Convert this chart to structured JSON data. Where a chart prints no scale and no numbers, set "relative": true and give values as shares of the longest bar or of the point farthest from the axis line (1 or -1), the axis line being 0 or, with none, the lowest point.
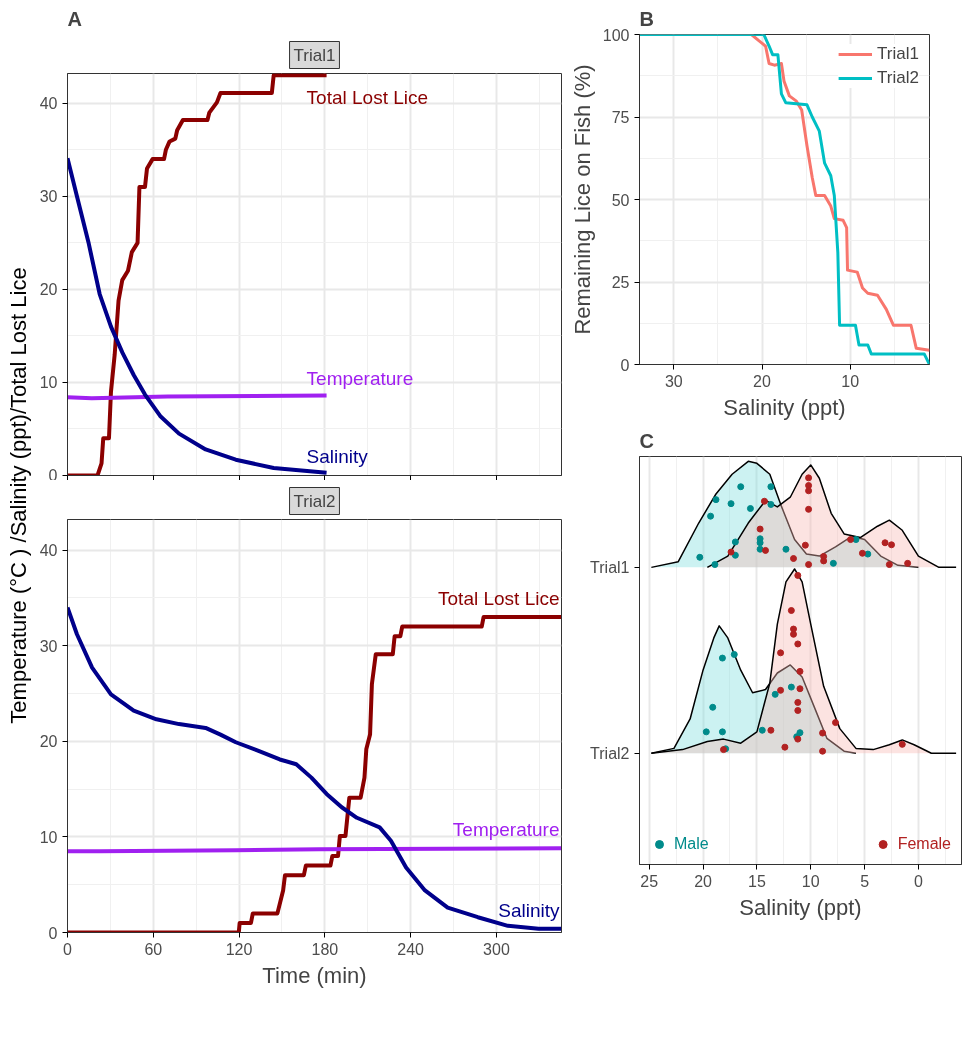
{
  "chart_data": [
    {
      "type": "line",
      "title": "Trial1",
      "ylabel": "Temperature (°C ) /Salinity (ppt)/Total Lost Lice",
      "xlim": [
        0,
        345.5
      ],
      "ylim": [
        0,
        43.2
      ],
      "xticks": [
        0,
        60,
        120,
        180,
        240,
        300
      ],
      "yticks": [
        0,
        10,
        20,
        30,
        40
      ],
      "tick_labels": "y",
      "grid": true,
      "annotations": [
        "A"
      ],
      "series": [
        {
          "name": "Total Lost Lice",
          "color": "#8b0000",
          "x": [
            0,
            21,
            23.8,
            25,
            29,
            30.4,
            33,
            35.7,
            38.3,
            42.3,
            45,
            49,
            50.3,
            54.2,
            55.6,
            59.5,
            67.5,
            68.8,
            71.4,
            75.4,
            76.7,
            80.7,
            97.9,
            99.2,
            104.5,
            107,
            142.9,
            144.2,
            181.2
          ],
          "values": [
            0,
            0,
            1.3,
            4,
            4,
            9,
            13,
            18.8,
            21,
            22,
            24,
            25,
            31,
            31,
            33,
            34,
            34,
            35,
            35.9,
            36.2,
            37.1,
            38.2,
            38.2,
            39,
            40.1,
            41.1,
            41.1,
            43,
            43
          ]
        },
        {
          "name": "Temperature",
          "color": "#a020f0",
          "x": [
            0,
            17,
            70,
            181.2
          ],
          "values": [
            8.4,
            8.3,
            8.5,
            8.6
          ]
        },
        {
          "name": "Salinity",
          "color": "#00008b",
          "x": [
            0,
            6.6,
            14.6,
            22.5,
            30.4,
            38.4,
            46.3,
            54.2,
            64.8,
            78,
            96.6,
            117.7,
            144.2,
            181.2
          ],
          "values": [
            34.1,
            30,
            25.1,
            19.5,
            16,
            13.2,
            10.8,
            8.7,
            6.4,
            4.5,
            2.8,
            1.7,
            0.8,
            0.3
          ]
        }
      ]
    },
    {
      "type": "line",
      "title": "Trial2",
      "xlabel": "Time (min)",
      "xlim": [
        0,
        345.5
      ],
      "ylim": [
        0,
        43.2
      ],
      "xticks": [
        0,
        60,
        120,
        180,
        240,
        300
      ],
      "yticks": [
        0,
        10,
        20,
        30,
        40
      ],
      "grid": true,
      "series": [
        {
          "name": "Total Lost Lice",
          "color": "#8b0000",
          "x": [
            0,
            119.8,
            120.4,
            128.3,
            129.6,
            146.8,
            150.8,
            152.1,
            165.3,
            166.7,
            183.9,
            185.2,
            189.2,
            190.5,
            194.4,
            197.1,
            205,
            207.7,
            209,
            211.6,
            212.9,
            215.6,
            227.5,
            228.8,
            232.8,
            234.1,
            289.7,
            291,
            345.2
          ],
          "values": [
            0,
            0,
            1,
            1,
            2,
            2,
            4.4,
            6,
            6,
            7,
            7,
            8,
            8,
            10.1,
            10.1,
            14.1,
            14.1,
            16.2,
            19.2,
            20.7,
            26,
            29.1,
            29.1,
            31,
            31,
            32,
            32,
            33,
            33
          ]
        },
        {
          "name": "Temperature",
          "color": "#a020f0",
          "x": [
            0,
            22.5,
            117.7,
            176,
            345.2
          ],
          "values": [
            8.5,
            8.5,
            8.6,
            8.7,
            8.8
          ]
        },
        {
          "name": "Salinity",
          "color": "#00008b",
          "x": [
            0,
            6.6,
            17.2,
            30.4,
            46.3,
            62.2,
            78,
            96.6,
            107,
            117.7,
            133.6,
            148.5,
            160,
            170.6,
            181.2,
            191.8,
            202.4,
            218.3,
            226.2,
            236.8,
            250,
            265.9,
            287,
            308,
            329.4,
            345.2
          ],
          "values": [
            34,
            31.2,
            27.7,
            24.9,
            23.2,
            22.3,
            21.8,
            21.4,
            20.7,
            19.9,
            19,
            18.1,
            17.6,
            16.2,
            14.5,
            13.1,
            12,
            11,
            9.6,
            6.8,
            4.4,
            2.6,
            1.6,
            0.7,
            0.4,
            0.4
          ]
        }
      ]
    },
    {
      "type": "line",
      "xlabel": "Salinity (ppt)",
      "ylabel": "Remaining Lice on Fish (%)",
      "xlim": [
        33.9,
        1
      ],
      "ylim": [
        0,
        100
      ],
      "xticks": [
        30,
        20,
        10
      ],
      "yticks": [
        0,
        25,
        50,
        75,
        100
      ],
      "grid": true,
      "legend": "top right",
      "annotations": [
        "B"
      ],
      "series": [
        {
          "name": "Trial1",
          "color": "#f8766d",
          "x": [
            33.9,
            21.2,
            20.4,
            19.6,
            19.2,
            18.6,
            17.8,
            17.5,
            16.9,
            16.1,
            15.5,
            14.9,
            14.3,
            13.9,
            12.9,
            12.2,
            11.8,
            10.8,
            10.4,
            10.3,
            9.2,
            8.6,
            8,
            6.9,
            5.9,
            5.1,
            3.1,
            2.5,
            1
          ],
          "values": [
            100,
            100,
            98.2,
            96.5,
            91.2,
            90.7,
            91.2,
            85.8,
            81.4,
            79.8,
            77.1,
            66.3,
            56.6,
            51.2,
            51.2,
            48,
            44.2,
            43.7,
            41.5,
            28.6,
            28,
            23.2,
            21.6,
            21,
            16.7,
            11.9,
            11.9,
            4.9,
            4.3
          ]
        },
        {
          "name": "Trial2",
          "color": "#00bfc4",
          "x": [
            33.9,
            19.8,
            19.2,
            18.8,
            18.2,
            17.8,
            17.3,
            14.9,
            14.3,
            13.5,
            12.9,
            12.2,
            11.8,
            11.4,
            11.2,
            9.4,
            9,
            8,
            7.6,
            1.6,
            1
          ],
          "values": [
            100,
            100,
            96.5,
            93.9,
            93.9,
            82,
            79.3,
            78.7,
            75,
            70.7,
            61,
            57.2,
            51.2,
            34,
            11.9,
            11.9,
            5.9,
            5.9,
            3.2,
            3.2,
            0
          ]
        }
      ]
    },
    {
      "type": "area",
      "xlabel": "Salinity (ppt)",
      "xlim": [
        25.9,
        -4
      ],
      "relative": true,
      "xticks": [
        25,
        20,
        15,
        10,
        5,
        0
      ],
      "y_categories": [
        "Trial1",
        "Trial2"
      ],
      "grid": "x",
      "legend": "bottom",
      "annotations": [
        "C"
      ],
      "series": [
        {
          "color": "#7fdede",
          "x": [
            24.8,
            22.3,
            20.4,
            18.8,
            17.3,
            15.8,
            15,
            13.8,
            12.7,
            11.5,
            10.4,
            9.2,
            7.7,
            6.2,
            5,
            3.5,
            1.9,
            0
          ],
          "values": [
            0.737,
            0.751,
            0.847,
            0.919,
            0.968,
            1,
            0.995,
            0.968,
            0.887,
            0.806,
            0.77,
            0.765,
            0.788,
            0.814,
            0.806,
            0.765,
            0.742,
            0.737
          ]
        },
        {
          "color": "#f8b8b3",
          "x": [
            19.6,
            17.7,
            15.8,
            14.2,
            13.1,
            11.9,
            10.8,
            10,
            9.2,
            8.1,
            6.9,
            5.4,
            3.8,
            2.7,
            1.5,
            0,
            -1.9,
            -3.5
          ],
          "values": [
            0.737,
            0.765,
            0.847,
            0.903,
            0.887,
            0.911,
            0.968,
            0.991,
            0.958,
            0.871,
            0.82,
            0.811,
            0.839,
            0.854,
            0.829,
            0.765,
            0.737,
            0.737
          ]
        },
        {
          "color": "#7fdede",
          "x": [
            24.8,
            22.7,
            21.2,
            20,
            19,
            18.5,
            17.7,
            16.5,
            15.4,
            14.2,
            13.1,
            11.9,
            10.8,
            9.6,
            8.5,
            6.9,
            5.8
          ],
          "values": [
            0.276,
            0.288,
            0.361,
            0.482,
            0.562,
            0.592,
            0.562,
            0.482,
            0.426,
            0.434,
            0.475,
            0.495,
            0.465,
            0.386,
            0.313,
            0.281,
            0.276
          ]
        },
        {
          "color": "#f8b8b3",
          "x": [
            24.8,
            21.9,
            19.6,
            18.1,
            16.5,
            15,
            13.8,
            13.1,
            12.3,
            11.5,
            10.8,
            10,
            8.8,
            7.3,
            5.8,
            4.2,
            2.7,
            1.5,
            0.4,
            -1.2,
            -3.5
          ],
          "values": [
            0.276,
            0.285,
            0.305,
            0.311,
            0.301,
            0.329,
            0.45,
            0.596,
            0.701,
            0.733,
            0.701,
            0.596,
            0.442,
            0.337,
            0.288,
            0.285,
            0.297,
            0.309,
            0.297,
            0.276,
            0.276
          ]
        },
        {
          "type": "scatter",
          "marker": "circle",
          "name": "Male",
          "color": "#008b8b",
          "x": [
            16.5,
            13.7,
            18.8,
            17.4,
            13.7,
            19.3,
            15.6,
            17,
            14.7,
            14.7,
            14.7,
            12.3,
            20.3,
            17,
            18.9,
            5.8,
            4.7,
            7.9
          ],
          "values": [
            0.937,
            0.937,
            0.905,
            0.895,
            0.893,
            0.864,
            0.883,
            0.8,
            0.808,
            0.798,
            0.782,
            0.782,
            0.762,
            0.767,
            0.744,
            0.806,
            0.77,
            0.747
          ]
        },
        {
          "type": "scatter",
          "marker": "circle",
          "name": "Female",
          "color": "#b22222",
          "x": [
            10.2,
            10.2,
            10.2,
            10.2,
            14.3,
            14.7,
            17.4,
            14.2,
            11.6,
            10.5,
            10.2,
            8.8,
            8.8,
            6.3,
            5.2,
            3.1,
            2.5,
            2.7,
            1
          ],
          "values": [
            0.959,
            0.94,
            0.927,
            0.881,
            0.901,
            0.832,
            0.775,
            0.779,
            0.759,
            0.792,
            0.744,
            0.764,
            0.753,
            0.806,
            0.772,
            0.798,
            0.793,
            0.744,
            0.747
          ]
        },
        {
          "type": "scatter",
          "marker": "circle",
          "color": "#008b8b",
          "x": [
            18.2,
            17.1,
            19.1,
            19.7,
            18.2,
            17.9,
            14.5,
            13.3,
            11.8,
            11,
            11.3
          ],
          "values": [
            0.512,
            0.521,
            0.39,
            0.329,
            0.329,
            0.287,
            0.333,
            0.422,
            0.44,
            0.327,
            0.317
          ]
        },
        {
          "type": "scatter",
          "marker": "circle",
          "color": "#b22222",
          "x": [
            11.2,
            11.8,
            11.6,
            11.6,
            11.2,
            12.8,
            11,
            12.8,
            11,
            11.2,
            11.2,
            7.7,
            13.7,
            8.9,
            11.2,
            12.4,
            18.1,
            8.9,
            1.5
          ],
          "values": [
            0.717,
            0.63,
            0.584,
            0.571,
            0.547,
            0.525,
            0.479,
            0.432,
            0.436,
            0.402,
            0.382,
            0.352,
            0.333,
            0.326,
            0.311,
            0.291,
            0.285,
            0.281,
            0.298
          ]
        }
      ]
    }
  ]
}
